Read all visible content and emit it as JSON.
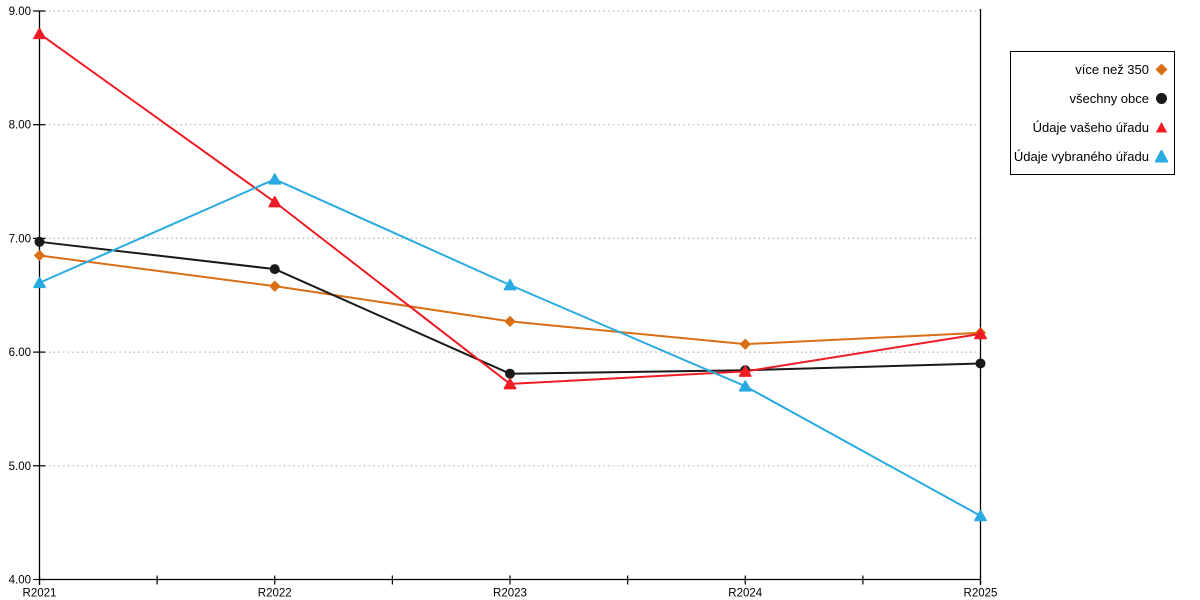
{
  "chart_data": {
    "type": "line",
    "title": "",
    "xlabel": "",
    "ylabel": "",
    "categories": [
      "R2021",
      "R2022",
      "R2023",
      "R2024",
      "R2025"
    ],
    "series": [
      {
        "name": "více než 350",
        "color": "#D96E14",
        "marker": "diamond",
        "values": [
          6.85,
          6.58,
          6.27,
          6.07,
          6.17
        ]
      },
      {
        "name": "všechny obce",
        "color": "#1A1A1A",
        "marker": "circle",
        "values": [
          6.97,
          6.73,
          5.81,
          5.84,
          5.9
        ]
      },
      {
        "name": "Údaje vašeho úřadu",
        "color": "#EE1C25",
        "marker": "triangle",
        "values": [
          8.8,
          7.32,
          5.72,
          5.83,
          6.16
        ]
      },
      {
        "name": "Údaje vybraného úřadu",
        "color": "#29ABE2",
        "marker": "triangle",
        "values": [
          6.61,
          7.52,
          6.59,
          5.7,
          4.56
        ]
      }
    ],
    "ylim": [
      4.0,
      9.0
    ],
    "ytick_step": 1.0,
    "ytick_labels": [
      "4.00",
      "5.00",
      "6.00",
      "7.00",
      "8.00",
      "9.00"
    ],
    "grid": "horizontal-dotted",
    "legend_position": "top-right-outside"
  },
  "colors": {
    "axis": "#000000",
    "grid": "#b3b3b3",
    "background": "#ffffff",
    "tick_label": "#000000"
  }
}
